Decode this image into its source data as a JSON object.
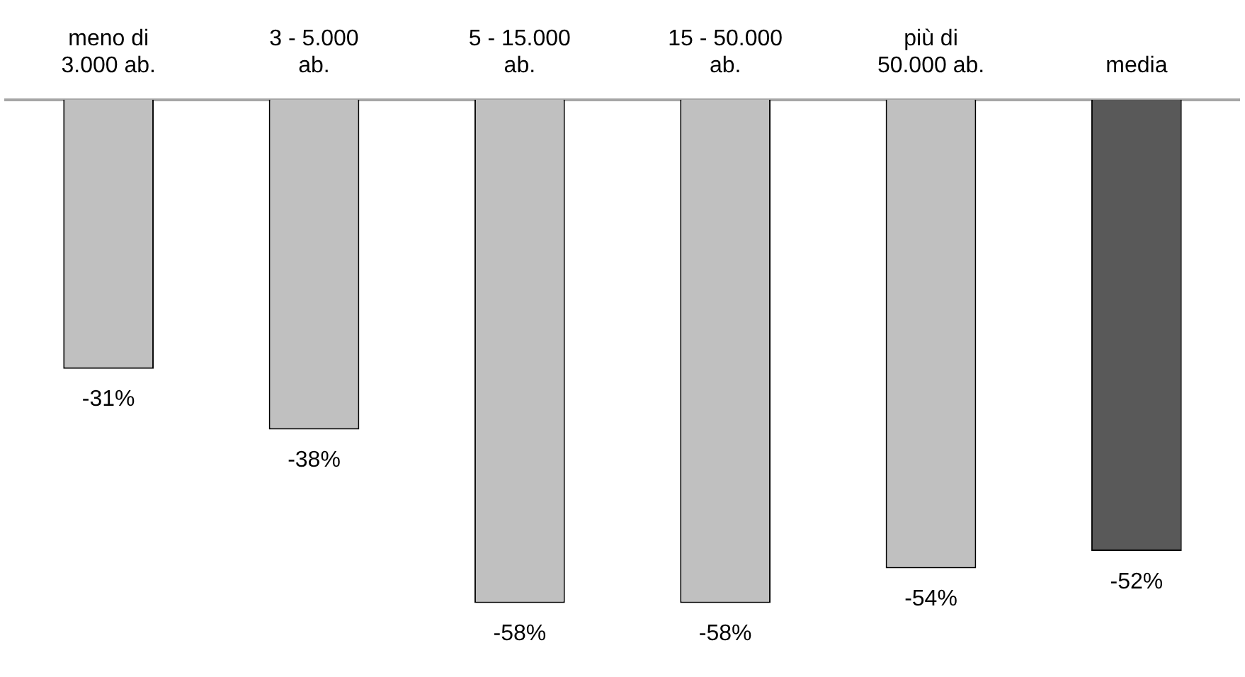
{
  "chart_data": {
    "type": "bar",
    "categories": [
      "meno di\n3.000 ab.",
      "3 - 5.000\nab.",
      "5 - 15.000\nab.",
      "15 - 50.000\nab.",
      "più di\n50.000 ab.",
      "media"
    ],
    "values": [
      -31,
      -38,
      -58,
      -58,
      -54,
      -52
    ],
    "colors": [
      "#c0c0c0",
      "#c0c0c0",
      "#c0c0c0",
      "#c0c0c0",
      "#c0c0c0",
      "#595959"
    ],
    "value_labels": [
      "-31%",
      "-38%",
      "-58%",
      "-58%",
      "-54%",
      "-52%"
    ],
    "tick_labels": "x",
    "grid": false,
    "legend": false
  }
}
